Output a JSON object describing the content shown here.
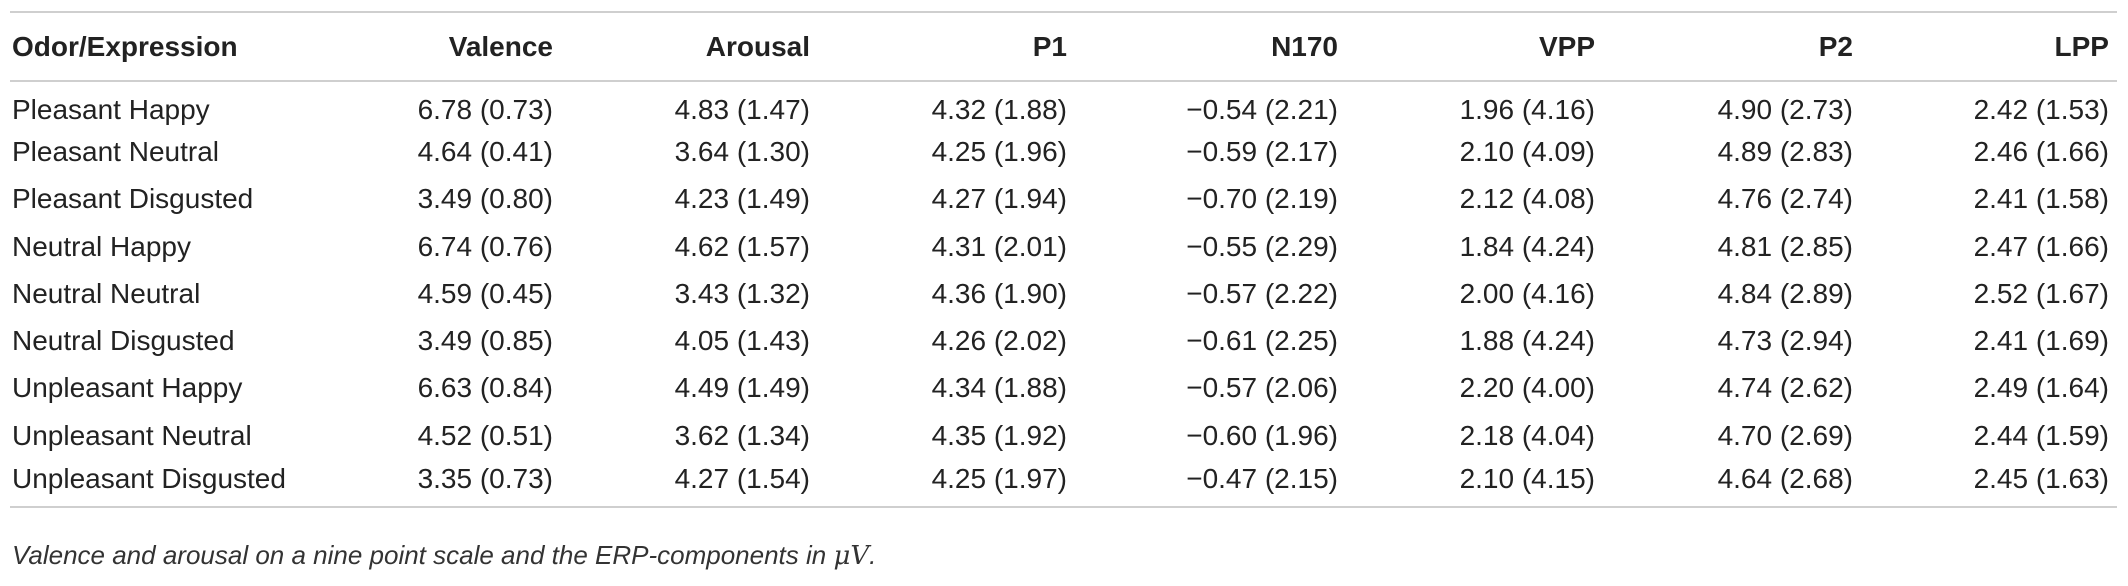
{
  "table": {
    "headers": [
      "Odor/Expression",
      "Valence",
      "Arousal",
      "P1",
      "N170",
      "VPP",
      "P2",
      "LPP"
    ],
    "rows": [
      [
        "Pleasant Happy",
        "6.78 (0.73)",
        "4.83 (1.47)",
        "4.32 (1.88)",
        "−0.54 (2.21)",
        "1.96 (4.16)",
        "4.90 (2.73)",
        "2.42 (1.53)"
      ],
      [
        "Pleasant Neutral",
        "4.64 (0.41)",
        "3.64 (1.30)",
        "4.25 (1.96)",
        "−0.59 (2.17)",
        "2.10 (4.09)",
        "4.89 (2.83)",
        "2.46 (1.66)"
      ],
      [
        "Pleasant Disgusted",
        "3.49 (0.80)",
        "4.23 (1.49)",
        "4.27 (1.94)",
        "−0.70 (2.19)",
        "2.12 (4.08)",
        "4.76 (2.74)",
        "2.41 (1.58)"
      ],
      [
        "Neutral Happy",
        "6.74 (0.76)",
        "4.62 (1.57)",
        "4.31 (2.01)",
        "−0.55 (2.29)",
        "1.84 (4.24)",
        "4.81 (2.85)",
        "2.47 (1.66)"
      ],
      [
        "Neutral Neutral",
        "4.59 (0.45)",
        "3.43 (1.32)",
        "4.36 (1.90)",
        "−0.57 (2.22)",
        "2.00 (4.16)",
        "4.84 (2.89)",
        "2.52 (1.67)"
      ],
      [
        "Neutral Disgusted",
        "3.49 (0.85)",
        "4.05 (1.43)",
        "4.26 (2.02)",
        "−0.61 (2.25)",
        "1.88 (4.24)",
        "4.73 (2.94)",
        "2.41 (1.69)"
      ],
      [
        "Unpleasant Happy",
        "6.63 (0.84)",
        "4.49 (1.49)",
        "4.34 (1.88)",
        "−0.57 (2.06)",
        "2.20 (4.00)",
        "4.74 (2.62)",
        "2.49 (1.64)"
      ],
      [
        "Unpleasant Neutral",
        "4.52 (0.51)",
        "3.62 (1.34)",
        "4.35 (1.92)",
        "−0.60 (1.96)",
        "2.18 (4.04)",
        "4.70 (2.69)",
        "2.44 (1.59)"
      ],
      [
        "Unpleasant Disgusted",
        "3.35 (0.73)",
        "4.27 (1.54)",
        "4.25 (1.97)",
        "−0.47 (2.15)",
        "2.10 (4.15)",
        "4.64 (2.68)",
        "2.45 (1.63)"
      ]
    ]
  },
  "caption": {
    "text_before": "Valence and arousal on a nine point scale and the ERP-components in ",
    "unit_symbol": "μV",
    "text_after": "."
  }
}
